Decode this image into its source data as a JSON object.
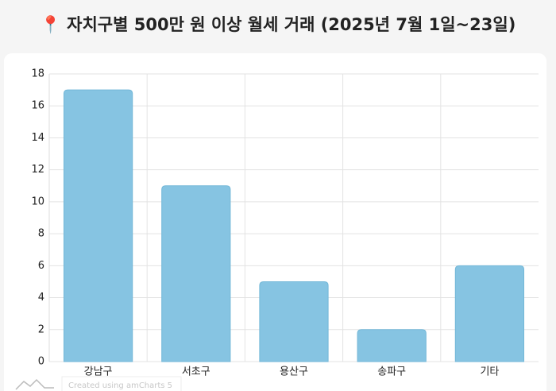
{
  "chart_data": {
    "type": "bar",
    "title": "📍 자치구별 500만 원 이상 월세 거래 (2025년 7월 1일~23일)",
    "categories": [
      "강남구",
      "서초구",
      "용산구",
      "송파구",
      "기타"
    ],
    "values": [
      17,
      11,
      5,
      2,
      6
    ],
    "color": "#86c4e2",
    "ylim": [
      0,
      18
    ],
    "yticks": [
      0,
      2,
      4,
      6,
      8,
      10,
      12,
      14,
      16,
      18
    ],
    "grid": true,
    "watermark": "Created using amCharts 5"
  }
}
